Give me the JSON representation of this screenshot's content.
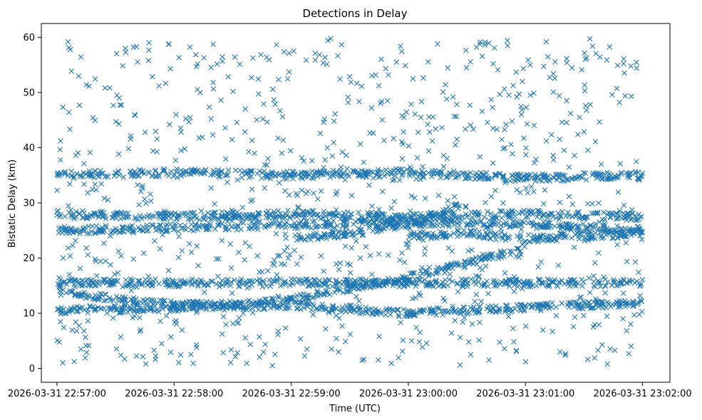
{
  "chart_data": {
    "type": "scatter",
    "title": "Detections in Delay",
    "xlabel": "Time (UTC)",
    "ylabel": "Bistatic Delay (km)",
    "marker": "x",
    "color": "#1f77b4",
    "grid": false,
    "legend": "none",
    "xlim": [
      "2026-03-31 22:56:52",
      "2026-03-31 23:02:14"
    ],
    "ylim": [
      -2.5,
      62.5
    ],
    "xticks": [
      "2026-03-31 22:57:00",
      "2026-03-31 22:58:00",
      "2026-03-31 22:59:00",
      "2026-03-31 23:00:00",
      "2026-03-31 23:01:00",
      "2026-03-31 23:02:00"
    ],
    "yticks": [
      "0",
      "10",
      "20",
      "30",
      "40",
      "50",
      "60"
    ],
    "x_range": [
      "2026-03-31 22:57:00",
      "2026-03-31 23:02:00"
    ],
    "y_range": [
      0.5,
      60
    ],
    "series": [
      {
        "tracks": [
          {
            "x": [
              "2026-03-31 22:57:00",
              "2026-03-31 22:57:30",
              "2026-03-31 22:58:00",
              "2026-03-31 22:58:30",
              "2026-03-31 22:59:00",
              "2026-03-31 22:59:30",
              "2026-03-31 23:00:00",
              "2026-03-31 23:00:30",
              "2026-03-31 23:01:00"
            ],
            "y": [
              14,
              12.5,
              11.5,
              11.5,
              12.5,
              14.5,
              16.5,
              19,
              22
            ]
          },
          {
            "x": [
              "2026-03-31 22:57:00",
              "2026-03-31 22:58:00",
              "2026-03-31 22:59:00",
              "2026-03-31 23:00:00",
              "2026-03-31 23:01:00",
              "2026-03-31 23:02:00"
            ],
            "y": [
              25,
              25.5,
              26,
              26.5,
              26,
              25
            ]
          },
          {
            "x": [
              "2026-03-31 22:57:00",
              "2026-03-31 22:58:00",
              "2026-03-31 22:59:00",
              "2026-03-31 23:00:00",
              "2026-03-31 23:01:00",
              "2026-03-31 23:02:00"
            ],
            "y": [
              28,
              27.5,
              28,
              27.5,
              28,
              27.5
            ]
          },
          {
            "x": [
              "2026-03-31 22:59:00",
              "2026-03-31 22:59:30",
              "2026-03-31 23:00:00",
              "2026-03-31 23:00:30"
            ],
            "y": [
              23.5,
              24.5,
              26,
              30
            ]
          },
          {
            "x": [
              "2026-03-31 22:57:00",
              "2026-03-31 22:58:00",
              "2026-03-31 22:59:00",
              "2026-03-31 23:00:00",
              "2026-03-31 23:01:00",
              "2026-03-31 23:02:00"
            ],
            "y": [
              10.5,
              11,
              11.5,
              10,
              11,
              12
            ]
          },
          {
            "x": [
              "2026-03-31 22:57:00",
              "2026-03-31 22:58:00",
              "2026-03-31 22:59:00",
              "2026-03-31 23:00:00",
              "2026-03-31 23:01:00",
              "2026-03-31 23:02:00"
            ],
            "y": [
              35,
              35.5,
              35,
              35.5,
              34.5,
              35
            ]
          },
          {
            "x": [
              "2026-03-31 22:57:00",
              "2026-03-31 22:58:00",
              "2026-03-31 22:59:00",
              "2026-03-31 23:00:00",
              "2026-03-31 23:01:00",
              "2026-03-31 23:02:00"
            ],
            "y": [
              15.5,
              15.5,
              15.5,
              15.5,
              15.5,
              15.5
            ]
          },
          {
            "x": [
              "2026-03-31 23:00:00",
              "2026-03-31 23:00:30",
              "2026-03-31 23:01:00",
              "2026-03-31 23:01:30",
              "2026-03-31 23:02:00"
            ],
            "y": [
              24,
              24.5,
              23.5,
              24,
              24.5
            ]
          }
        ]
      }
    ]
  }
}
